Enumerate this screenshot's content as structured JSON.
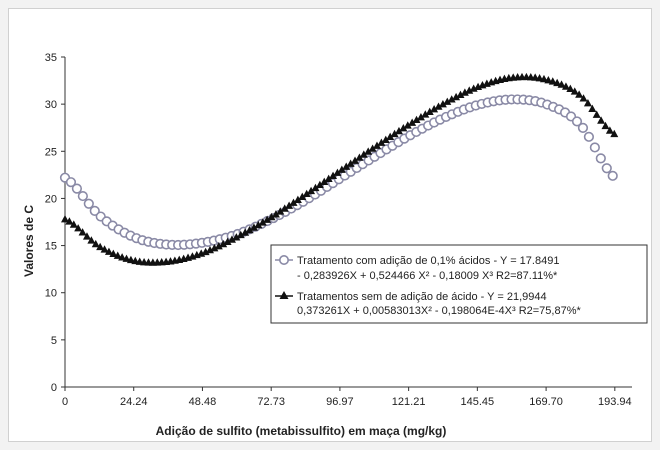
{
  "chart_data": {
    "type": "scatter",
    "title": "",
    "xlabel": "Adição de sulfito (metabissulfito) em maça (mg/kg)",
    "ylabel": "Valores de C",
    "xlim": [
      0,
      200
    ],
    "ylim": [
      0,
      35
    ],
    "x_ticks": [
      "0",
      "24.24",
      "48.48",
      "72.73",
      "96.97",
      "121.21",
      "145.45",
      "169.70",
      "193.94"
    ],
    "x_tick_values": [
      0,
      24.24,
      48.48,
      72.73,
      96.97,
      121.21,
      145.45,
      169.7,
      193.94
    ],
    "y_ticks": [
      "0",
      "5",
      "10",
      "15",
      "20",
      "25",
      "30",
      "35"
    ],
    "y_tick_values": [
      0,
      5,
      10,
      15,
      20,
      25,
      30,
      35
    ],
    "grid": false,
    "legend_position": "middle-right",
    "series": [
      {
        "name": "Tratamento com adição de 0,1% ácidos - Y = 17.8491",
        "name_line2": "- 0,283926X + 0,524466 X² - 0,18009 X³ R2=87.11%*",
        "marker": "circle",
        "color": "#8a8aa6",
        "x": [
          0,
          12.12,
          24.24,
          36.36,
          48.48,
          60.61,
          72.73,
          84.85,
          96.97,
          109.09,
          121.21,
          133.33,
          145.45,
          157.58,
          169.7,
          181.82,
          193.94
        ],
        "y": [
          22.2,
          18.2,
          15.9,
          15.1,
          15.3,
          16.2,
          17.8,
          19.8,
          22.1,
          24.4,
          26.6,
          28.5,
          29.9,
          30.5,
          30.0,
          27.8,
          22.2
        ]
      },
      {
        "name": "Tratamentos sem de adição de ácido - Y = 21,9944",
        "name_line2": "0,373261X + 0,00583013X² - 0,198064E-4X³ R2=75,87%*",
        "marker": "triangle",
        "color": "#111111",
        "x": [
          0,
          12.12,
          24.24,
          36.36,
          48.48,
          60.61,
          72.73,
          84.85,
          96.97,
          109.09,
          121.21,
          133.33,
          145.45,
          157.58,
          169.7,
          181.82,
          193.94
        ],
        "y": [
          17.8,
          14.9,
          13.4,
          13.3,
          14.2,
          15.9,
          18.0,
          20.4,
          22.9,
          25.4,
          27.8,
          30.0,
          31.8,
          32.8,
          32.6,
          30.9,
          26.8
        ]
      }
    ]
  }
}
